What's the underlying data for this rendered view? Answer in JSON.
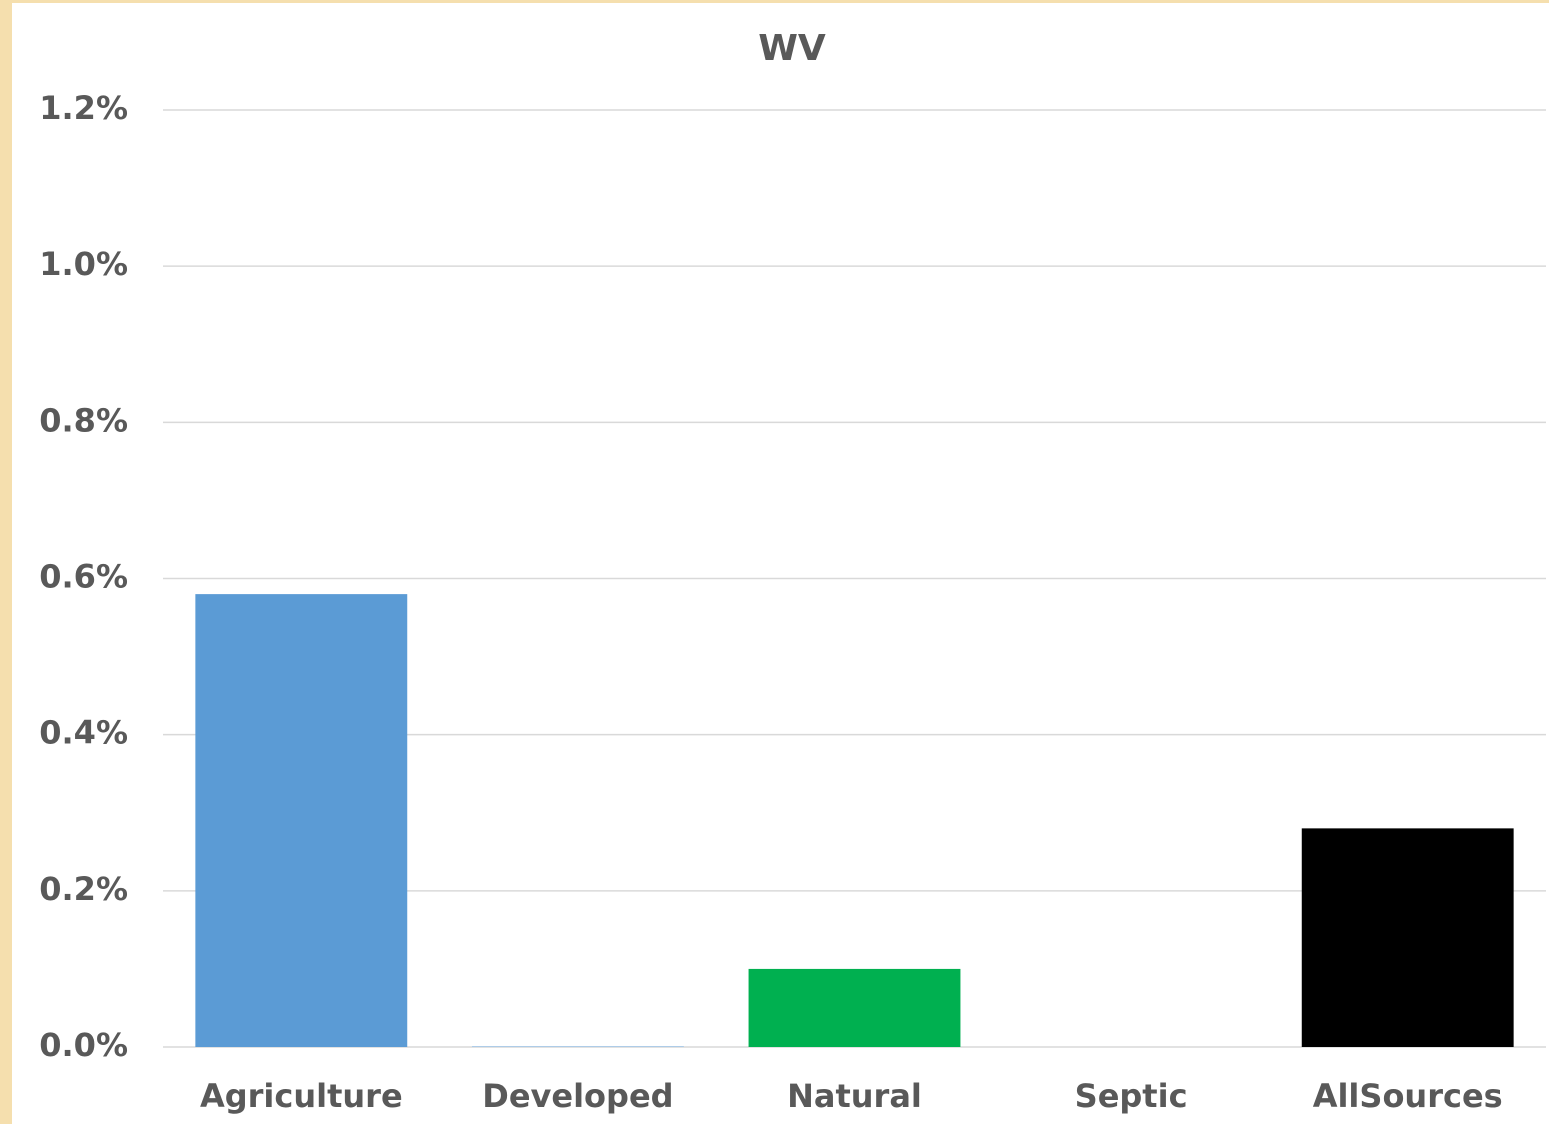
{
  "chart_data": {
    "type": "bar",
    "title": "WV",
    "categories": [
      "Agriculture",
      "Developed",
      "Natural",
      "Septic",
      "AllSources"
    ],
    "values": [
      0.58,
      0.001,
      0.1,
      0,
      0.28
    ],
    "colors": [
      "#5b9bd5",
      "#9dc3e6",
      "#00b050",
      "#a5a5a5",
      "#000000"
    ],
    "ylim": [
      0,
      1.2
    ],
    "yticks": [
      {
        "value": 0,
        "label": "0.0%"
      },
      {
        "value": 0.2,
        "label": "0.2%"
      },
      {
        "value": 0.4,
        "label": "0.4%"
      },
      {
        "value": 0.6,
        "label": "0.6%"
      },
      {
        "value": 0.8,
        "label": "0.8%"
      },
      {
        "value": 1.0,
        "label": "1.0%"
      },
      {
        "value": 1.2,
        "label": "1.2%"
      }
    ],
    "grid": true
  }
}
